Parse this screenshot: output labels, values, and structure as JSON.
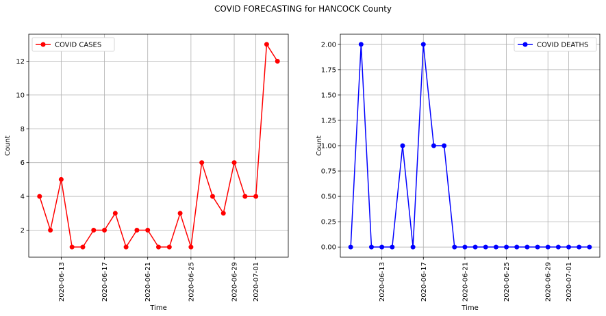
{
  "suptitle": "COVID FORECASTING for HANCOCK County",
  "chart_data": [
    {
      "type": "line",
      "xlabel": "Time",
      "ylabel": "Count",
      "x_start": "2020-06-11",
      "x": [
        "2020-06-11",
        "2020-06-12",
        "2020-06-13",
        "2020-06-14",
        "2020-06-15",
        "2020-06-16",
        "2020-06-17",
        "2020-06-18",
        "2020-06-19",
        "2020-06-20",
        "2020-06-21",
        "2020-06-22",
        "2020-06-23",
        "2020-06-24",
        "2020-06-25",
        "2020-06-26",
        "2020-06-27",
        "2020-06-28",
        "2020-06-29",
        "2020-06-30",
        "2020-07-01",
        "2020-07-02",
        "2020-07-03"
      ],
      "series": [
        {
          "name": "COVID CASES",
          "color": "#ff0000",
          "values": [
            4,
            2,
            5,
            1,
            1,
            2,
            2,
            3,
            1,
            2,
            2,
            1,
            1,
            3,
            1,
            6,
            4,
            3,
            6,
            4,
            4,
            13,
            12
          ]
        }
      ],
      "xlim": [
        "2020-06-10",
        "2020-07-04"
      ],
      "ylim": [
        0.4,
        13.6
      ],
      "yticks": [
        2,
        4,
        6,
        8,
        10,
        12
      ],
      "ytick_labels": [
        "2",
        "4",
        "6",
        "8",
        "10",
        "12"
      ],
      "xticks": [
        "2020-06-13",
        "2020-06-17",
        "2020-06-21",
        "2020-06-25",
        "2020-06-29",
        "2020-07-01"
      ],
      "xtick_labels": [
        "2020-06-13",
        "2020-06-17",
        "2020-06-21",
        "2020-06-25",
        "2020-06-29",
        "2020-07-01"
      ],
      "grid": true,
      "legend": "upper left"
    },
    {
      "type": "line",
      "xlabel": "Time",
      "ylabel": "Count",
      "x": [
        "2020-06-10",
        "2020-06-11",
        "2020-06-12",
        "2020-06-13",
        "2020-06-14",
        "2020-06-15",
        "2020-06-16",
        "2020-06-17",
        "2020-06-18",
        "2020-06-19",
        "2020-06-20",
        "2020-06-21",
        "2020-06-22",
        "2020-06-23",
        "2020-06-24",
        "2020-06-25",
        "2020-06-26",
        "2020-06-27",
        "2020-06-28",
        "2020-06-29",
        "2020-06-30",
        "2020-07-01",
        "2020-07-02",
        "2020-07-03"
      ],
      "series": [
        {
          "name": "COVID DEATHS",
          "color": "#0000ff",
          "values": [
            0,
            2,
            0,
            0,
            0,
            1,
            0,
            2,
            1,
            1,
            0,
            0,
            0,
            0,
            0,
            0,
            0,
            0,
            0,
            0,
            0,
            0,
            0,
            0
          ]
        }
      ],
      "xlim": [
        "2020-06-09",
        "2020-07-04"
      ],
      "ylim": [
        -0.1,
        2.1
      ],
      "yticks": [
        0,
        0.25,
        0.5,
        0.75,
        1.0,
        1.25,
        1.5,
        1.75,
        2.0
      ],
      "ytick_labels": [
        "0.00",
        "0.25",
        "0.50",
        "0.75",
        "1.00",
        "1.25",
        "1.50",
        "1.75",
        "2.00"
      ],
      "xticks": [
        "2020-06-13",
        "2020-06-17",
        "2020-06-21",
        "2020-06-25",
        "2020-06-29",
        "2020-07-01"
      ],
      "xtick_labels": [
        "2020-06-13",
        "2020-06-17",
        "2020-06-21",
        "2020-06-25",
        "2020-06-29",
        "2020-07-01"
      ],
      "grid": true,
      "legend": "upper right"
    }
  ]
}
